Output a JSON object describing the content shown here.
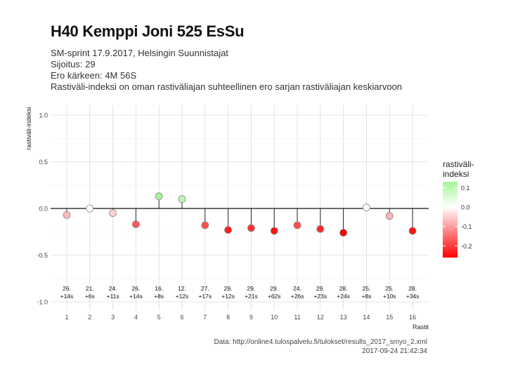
{
  "header": {
    "title": "H40 Kemppi Joni 525 EsSu",
    "subtitle_lines": [
      "SM-sprint 17.9.2017, Helsingin Suunnistajat",
      "Sijoitus: 29",
      "Ero kärkeen: 4M 56S",
      "Rastiväli-indeksi on oman rastiväliajan suhteellinen ero sarjan rastiväliajan keskiarvoon"
    ]
  },
  "caption": {
    "source": "Data: http://online4.tulospalvelu.fi/tulokset/results_2017_smyo_2.xml",
    "timestamp": "2017-09-24 21:42:34"
  },
  "chart_data": {
    "type": "scatter",
    "style": "lollipop",
    "xlabel": "Rastit",
    "ylabel": "rastiväli-indeksi",
    "ylim": [
      -1.05,
      1.1
    ],
    "yticks": [
      "1.0",
      "0.5",
      "0.0",
      "-0.5",
      "-1.0"
    ],
    "ytick_values": [
      1.0,
      0.5,
      0.0,
      -0.5,
      -1.0
    ],
    "x": [
      1,
      2,
      3,
      4,
      5,
      6,
      7,
      8,
      9,
      10,
      11,
      12,
      13,
      14,
      15,
      16
    ],
    "xtick_labels": [
      "1",
      "2",
      "3",
      "4",
      "5",
      "6",
      "7",
      "8",
      "9",
      "10",
      "11",
      "12",
      "13",
      "14",
      "15",
      "16"
    ],
    "values": [
      -0.07,
      0.0,
      -0.05,
      -0.17,
      0.13,
      0.1,
      -0.18,
      -0.23,
      -0.21,
      -0.24,
      -0.18,
      -0.22,
      -0.26,
      0.01,
      -0.08,
      -0.24
    ],
    "point_labels": [
      {
        "rank": "26.",
        "diff": "+14s"
      },
      {
        "rank": "21.",
        "diff": "+6s"
      },
      {
        "rank": "24.",
        "diff": "+11s"
      },
      {
        "rank": "26.",
        "diff": "+14s"
      },
      {
        "rank": "16.",
        "diff": "+8s"
      },
      {
        "rank": "12.",
        "diff": "+12s"
      },
      {
        "rank": "27.",
        "diff": "+17s"
      },
      {
        "rank": "29.",
        "diff": "+12s"
      },
      {
        "rank": "29.",
        "diff": "+21s"
      },
      {
        "rank": "29.",
        "diff": "+62s"
      },
      {
        "rank": "24.",
        "diff": "+26s"
      },
      {
        "rank": "29.",
        "diff": "+23s"
      },
      {
        "rank": "28.",
        "diff": "+24s"
      },
      {
        "rank": "25.",
        "diff": "+8s"
      },
      {
        "rank": "25.",
        "diff": "+10s"
      },
      {
        "rank": "28.",
        "diff": "+34s"
      }
    ],
    "grid": true,
    "legend": {
      "title_lines": [
        "rastiväli-",
        "indeksi"
      ],
      "placement": "right",
      "ticks": [
        "0.1",
        "0.0",
        "-0.1",
        "-0.2"
      ],
      "tick_values": [
        0.1,
        0.0,
        -0.1,
        -0.2
      ],
      "range": [
        -0.26,
        0.13
      ],
      "colors": {
        "high": "#a6f59a",
        "mid": "#ffffff",
        "low": "#ff0000"
      }
    }
  }
}
